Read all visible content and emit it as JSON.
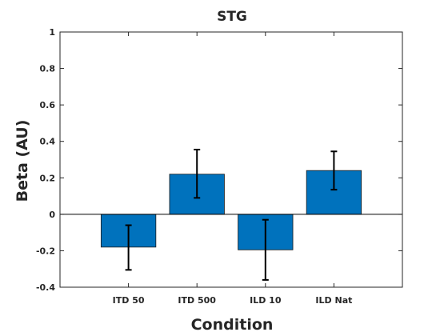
{
  "chart_data": {
    "type": "bar",
    "title": "STG",
    "xlabel": "Condition",
    "ylabel": "Beta (AU)",
    "categories": [
      "ITD 50",
      "ITD 500",
      "ILD 10",
      "ILD Nat"
    ],
    "values": [
      -0.18,
      0.22,
      -0.195,
      0.24
    ],
    "error_low": [
      -0.305,
      0.09,
      -0.36,
      0.135
    ],
    "error_high": [
      -0.06,
      0.355,
      -0.03,
      0.345
    ],
    "ylim": [
      -0.4,
      1
    ],
    "yticks": [
      "1",
      "0.8",
      "0.6",
      "0.4",
      "0.2",
      "0",
      "-0.2",
      "-0.4"
    ],
    "ytick_values": [
      1,
      0.8,
      0.6,
      0.4,
      0.2,
      0,
      -0.2,
      -0.4
    ],
    "grid": false,
    "bar_color": "#0072BD",
    "error_color": "#000000",
    "axis_color": "#262626"
  }
}
